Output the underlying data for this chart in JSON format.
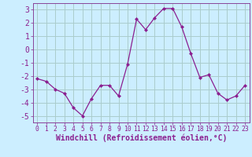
{
  "x": [
    0,
    1,
    2,
    3,
    4,
    5,
    6,
    7,
    8,
    9,
    10,
    11,
    12,
    13,
    14,
    15,
    16,
    17,
    18,
    19,
    20,
    21,
    22,
    23
  ],
  "y": [
    -2.2,
    -2.4,
    -3.0,
    -3.3,
    -4.4,
    -5.0,
    -3.7,
    -2.7,
    -2.7,
    -3.5,
    -1.1,
    2.3,
    1.5,
    2.4,
    3.1,
    3.1,
    1.7,
    -0.3,
    -2.1,
    -1.9,
    -3.3,
    -3.8,
    -3.5,
    -2.7
  ],
  "line_color": "#8B2090",
  "marker": "D",
  "marker_size": 2.0,
  "bg_color": "#cceeff",
  "grid_color": "#aacccc",
  "xlabel": "Windchill (Refroidissement éolien,°C)",
  "ylim": [
    -5.5,
    3.5
  ],
  "xlim": [
    -0.5,
    23.5
  ],
  "yticks": [
    -5,
    -4,
    -3,
    -2,
    -1,
    0,
    1,
    2,
    3
  ],
  "xticks": [
    0,
    1,
    2,
    3,
    4,
    5,
    6,
    7,
    8,
    9,
    10,
    11,
    12,
    13,
    14,
    15,
    16,
    17,
    18,
    19,
    20,
    21,
    22,
    23
  ],
  "xlabel_fontsize": 7.0,
  "ytick_fontsize": 7.0,
  "xtick_fontsize": 5.8,
  "line_color_hex": "#882299",
  "spine_color": "#884499"
}
